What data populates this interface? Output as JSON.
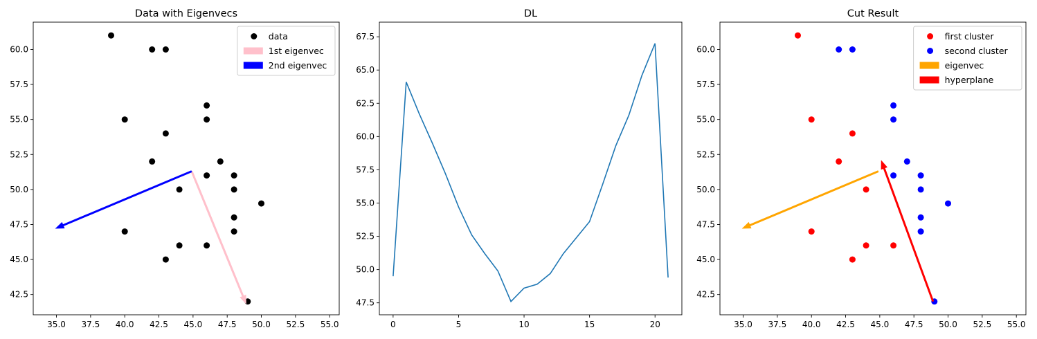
{
  "colors": {
    "data_point": "#000000",
    "first_eigenvec": "#ffc0cb",
    "second_eigenvec": "#0000ff",
    "dl_line": "#1f77b4",
    "first_cluster": "#ff0000",
    "second_cluster": "#0000ff",
    "eigenvec": "#ffa500",
    "hyperplane": "#ff0000"
  },
  "chart_data": [
    {
      "type": "scatter",
      "title": "Data with Eigenvecs",
      "xlabel": "",
      "ylabel": "",
      "xlim": [
        33.3,
        55.7
      ],
      "ylim": [
        41.05,
        61.95
      ],
      "xticks": [
        "35.0",
        "37.5",
        "40.0",
        "42.5",
        "45.0",
        "47.5",
        "50.0",
        "52.5",
        "55.0"
      ],
      "yticks": [
        "42.5",
        "45.0",
        "47.5",
        "50.0",
        "52.5",
        "55.0",
        "57.5",
        "60.0"
      ],
      "legend_position": "upper right",
      "series": [
        {
          "name": "data",
          "color": "#000000",
          "points": [
            [
              39,
              61
            ],
            [
              42,
              60
            ],
            [
              43,
              60
            ],
            [
              46,
              56
            ],
            [
              40,
              55
            ],
            [
              46,
              55
            ],
            [
              43,
              54
            ],
            [
              42,
              52
            ],
            [
              47,
              52
            ],
            [
              46,
              51
            ],
            [
              48,
              51
            ],
            [
              44,
              50
            ],
            [
              48,
              50
            ],
            [
              50,
              49
            ],
            [
              48,
              48
            ],
            [
              40,
              47
            ],
            [
              48,
              47
            ],
            [
              44,
              46
            ],
            [
              46,
              46
            ],
            [
              43,
              45
            ],
            [
              49,
              42
            ]
          ]
        }
      ],
      "arrows": [
        {
          "name": "1st eigenvec",
          "color": "#ffc0cb",
          "from": [
            44.9,
            51.3
          ],
          "to": [
            48.9,
            41.8
          ]
        },
        {
          "name": "2nd eigenvec",
          "color": "#0000ff",
          "from": [
            44.9,
            51.3
          ],
          "to": [
            34.9,
            47.2
          ]
        }
      ]
    },
    {
      "type": "line",
      "title": "DL",
      "xlabel": "",
      "ylabel": "",
      "xlim": [
        -1.05,
        22.05
      ],
      "ylim": [
        46.6,
        68.6
      ],
      "xticks": [
        "0",
        "5",
        "10",
        "15",
        "20"
      ],
      "yticks": [
        "47.5",
        "50.0",
        "52.5",
        "55.0",
        "57.5",
        "60.0",
        "62.5",
        "65.0",
        "67.5"
      ],
      "x": [
        0,
        1,
        2,
        3,
        4,
        5,
        6,
        7,
        8,
        9,
        10,
        11,
        12,
        13,
        14,
        15,
        16,
        17,
        18,
        19,
        20,
        21
      ],
      "series": [
        {
          "values": [
            49.5,
            64.1,
            61.7,
            59.5,
            57.2,
            54.7,
            52.6,
            51.2,
            49.9,
            47.6,
            48.6,
            48.9,
            49.7,
            51.2,
            52.4,
            53.6,
            56.4,
            59.3,
            61.6,
            64.6,
            67.0,
            49.4
          ]
        }
      ]
    },
    {
      "type": "scatter",
      "title": "Cut Result",
      "xlabel": "",
      "ylabel": "",
      "xlim": [
        33.3,
        55.7
      ],
      "ylim": [
        41.05,
        61.95
      ],
      "xticks": [
        "35.0",
        "37.5",
        "40.0",
        "42.5",
        "45.0",
        "47.5",
        "50.0",
        "52.5",
        "55.0"
      ],
      "yticks": [
        "42.5",
        "45.0",
        "47.5",
        "50.0",
        "52.5",
        "55.0",
        "57.5",
        "60.0"
      ],
      "legend_position": "upper right",
      "series": [
        {
          "name": "first cluster",
          "color": "#ff0000",
          "points": [
            [
              39,
              61
            ],
            [
              40,
              55
            ],
            [
              43,
              54
            ],
            [
              42,
              52
            ],
            [
              44,
              50
            ],
            [
              40,
              47
            ],
            [
              44,
              46
            ],
            [
              46,
              46
            ],
            [
              43,
              45
            ]
          ]
        },
        {
          "name": "second cluster",
          "color": "#0000ff",
          "points": [
            [
              42,
              60
            ],
            [
              43,
              60
            ],
            [
              46,
              56
            ],
            [
              46,
              55
            ],
            [
              47,
              52
            ],
            [
              46,
              51
            ],
            [
              48,
              51
            ],
            [
              48,
              50
            ],
            [
              50,
              49
            ],
            [
              48,
              48
            ],
            [
              48,
              47
            ],
            [
              49,
              42
            ]
          ]
        }
      ],
      "arrows": [
        {
          "name": "eigenvec",
          "color": "#ffa500",
          "from": [
            44.9,
            51.3
          ],
          "to": [
            34.9,
            47.2
          ]
        },
        {
          "name": "hyperplane",
          "color": "#ff0000",
          "from": [
            48.9,
            42.0
          ],
          "to": [
            45.1,
            52.1
          ]
        }
      ]
    }
  ]
}
